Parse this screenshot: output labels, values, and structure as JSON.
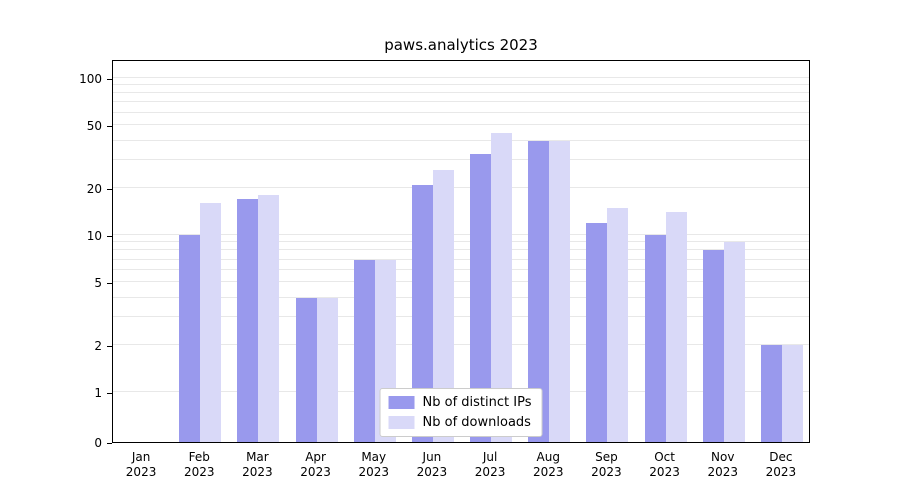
{
  "chart_data": {
    "type": "bar",
    "title": "paws.analytics 2023",
    "scale": "symlog",
    "grid": true,
    "legend_position": "lower center",
    "year_label": "2023",
    "categories": [
      "Jan",
      "Feb",
      "Mar",
      "Apr",
      "May",
      "Jun",
      "Jul",
      "Aug",
      "Sep",
      "Oct",
      "Nov",
      "Dec"
    ],
    "yticks": [
      0,
      1,
      2,
      5,
      10,
      20,
      50,
      100
    ],
    "ylim": [
      0,
      120
    ],
    "series": [
      {
        "name": "Nb of distinct IPs",
        "color": "#9999ed",
        "values": [
          0,
          10,
          17,
          4,
          7,
          21,
          33,
          40,
          12,
          10,
          8,
          2
        ]
      },
      {
        "name": "Nb of downloads",
        "color": "#d9d9f8",
        "values": [
          0,
          16,
          18,
          4,
          7,
          26,
          45,
          40,
          15,
          14,
          9,
          2
        ]
      }
    ]
  }
}
